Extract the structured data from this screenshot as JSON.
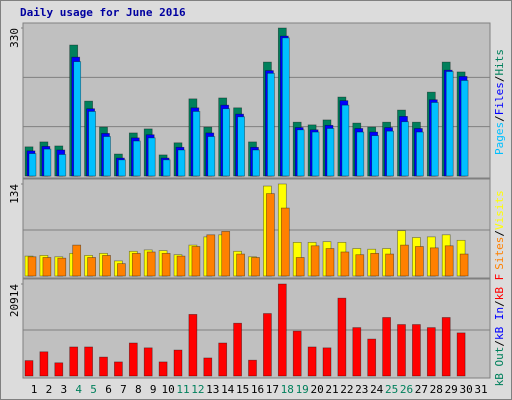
{
  "chart_data": [
    {
      "type": "bar",
      "title": "Daily usage for June 2016",
      "ylim": [
        0,
        330
      ],
      "yticks": [
        330
      ],
      "gridlines": [
        110,
        220
      ],
      "series": [
        {
          "name": "Hits",
          "color": "#00805c",
          "values": [
            65,
            76,
            67,
            292,
            167,
            109,
            49,
            96,
            105,
            47,
            74,
            172,
            109,
            174,
            152,
            76,
            254,
            330,
            120,
            114,
            125,
            176,
            118,
            109,
            120,
            147,
            120,
            187,
            254,
            232,
            null
          ]
        },
        {
          "name": "Files",
          "color": "#0000ff",
          "values": [
            56,
            66,
            58,
            265,
            150,
            95,
            40,
            85,
            92,
            40,
            64,
            152,
            96,
            158,
            138,
            64,
            235,
            312,
            108,
            103,
            113,
            168,
            106,
            98,
            108,
            133,
            106,
            170,
            236,
            222,
            null
          ]
        },
        {
          "name": "Pages",
          "color": "#00c0ff",
          "values": [
            50,
            60,
            48,
            255,
            144,
            88,
            36,
            78,
            85,
            36,
            58,
            144,
            88,
            150,
            132,
            58,
            229,
            308,
            103,
            98,
            106,
            158,
            98,
            90,
            100,
            121,
            98,
            164,
            233,
            213,
            null
          ]
        }
      ],
      "legend_separator": "/"
    },
    {
      "type": "bar",
      "ylim": [
        0,
        134
      ],
      "yticks": [
        134
      ],
      "gridlines": [
        67
      ],
      "series": [
        {
          "name": "Visits",
          "color": "#ffff00",
          "values": [
            29,
            30,
            28,
            33,
            30,
            33,
            22,
            36,
            38,
            37,
            31,
            45,
            57,
            60,
            36,
            28,
            131,
            134,
            49,
            49,
            50,
            49,
            40,
            39,
            40,
            66,
            56,
            57,
            60,
            52,
            null
          ]
        },
        {
          "name": "Sites",
          "color": "#ff8000",
          "values": [
            28,
            27,
            26,
            45,
            27,
            30,
            18,
            33,
            35,
            33,
            29,
            43,
            60,
            65,
            32,
            27,
            120,
            99,
            27,
            44,
            40,
            35,
            31,
            33,
            32,
            45,
            43,
            41,
            44,
            32,
            null
          ]
        }
      ],
      "legend_separator": "/"
    },
    {
      "type": "bar",
      "ylim": [
        0,
        20914
      ],
      "yticks": [
        20914
      ],
      "gridlines": [
        10457
      ],
      "categories": [
        "1",
        "2",
        "3",
        "4",
        "5",
        "6",
        "7",
        "8",
        "9",
        "10",
        "11",
        "12",
        "13",
        "14",
        "15",
        "16",
        "17",
        "18",
        "19",
        "20",
        "21",
        "22",
        "23",
        "24",
        "25",
        "26",
        "27",
        "28",
        "29",
        "30",
        "31"
      ],
      "category_colors": [
        "#000000",
        "#000000",
        "#000000",
        "#00805c",
        "#00805c",
        "#000000",
        "#000000",
        "#000000",
        "#000000",
        "#000000",
        "#00805c",
        "#00805c",
        "#000000",
        "#000000",
        "#000000",
        "#000000",
        "#000000",
        "#00805c",
        "#00805c",
        "#000000",
        "#000000",
        "#000000",
        "#000000",
        "#000000",
        "#00805c",
        "#00805c",
        "#000000",
        "#000000",
        "#000000",
        "#000000",
        "#000000"
      ],
      "series": [
        {
          "name": "kB F",
          "color": "#ff0000",
          "values": [
            3500,
            5500,
            3000,
            6600,
            6600,
            4300,
            3200,
            7500,
            6400,
            3200,
            5900,
            14000,
            4100,
            7500,
            12000,
            3600,
            14200,
            20914,
            10200,
            6600,
            6400,
            17700,
            11000,
            8400,
            13300,
            11700,
            11700,
            11000,
            13300,
            9800,
            null
          ]
        },
        {
          "name": "kB In",
          "color": "#0000ff",
          "values": [
            0,
            0,
            0,
            0,
            0,
            0,
            0,
            0,
            0,
            0,
            0,
            0,
            0,
            0,
            0,
            0,
            0,
            0,
            0,
            0,
            0,
            0,
            0,
            0,
            0,
            0,
            0,
            0,
            0,
            0,
            null
          ]
        },
        {
          "name": "kB Out",
          "color": "#00805c",
          "values": [
            0,
            0,
            0,
            0,
            0,
            0,
            0,
            0,
            0,
            0,
            0,
            0,
            0,
            0,
            0,
            0,
            0,
            0,
            0,
            0,
            0,
            0,
            0,
            0,
            0,
            0,
            0,
            0,
            0,
            0,
            null
          ]
        }
      ],
      "legend_separator": "/"
    }
  ]
}
